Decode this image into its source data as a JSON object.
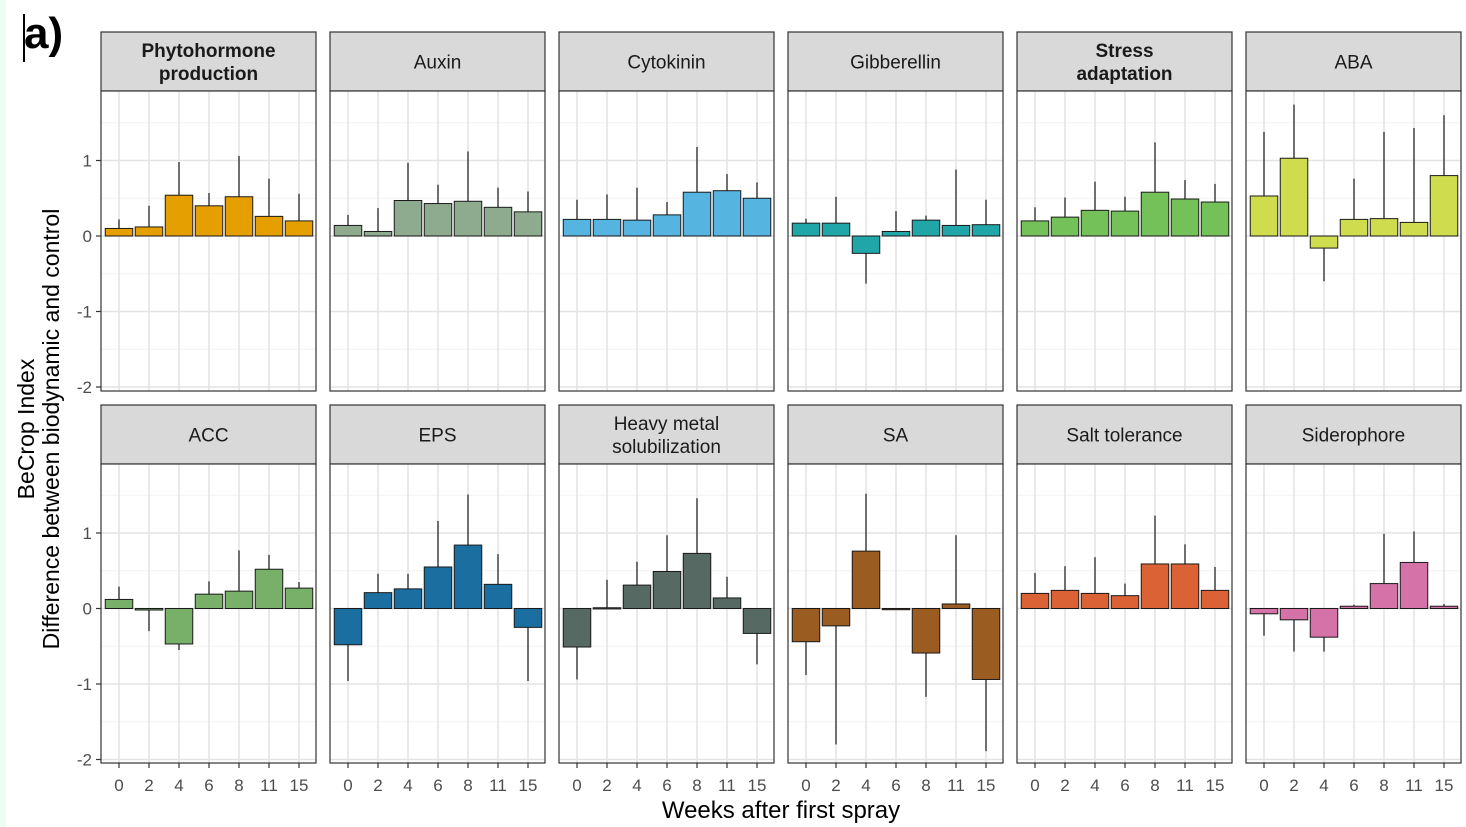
{
  "panel_label": "a)",
  "chart_data": {
    "type": "bar",
    "xlabel": "Weeks after first spray",
    "ylabel_line1": "BeCrop Index",
    "ylabel_line2": "Difference between biodynamic and control",
    "categories": [
      "0",
      "2",
      "4",
      "6",
      "8",
      "11",
      "15"
    ],
    "ylim": [
      -2,
      2
    ],
    "yticks": [
      -2,
      -1,
      0,
      1
    ],
    "ytick_labels": [
      "-2",
      "-1",
      "0",
      "1"
    ],
    "grid": true,
    "legend": "none",
    "panels": [
      {
        "title": "Phytohormone\nproduction",
        "bold": true,
        "color": "#e69f00",
        "values": [
          0.1,
          0.12,
          0.54,
          0.4,
          0.52,
          0.26,
          0.2
        ],
        "error_upper": [
          0.22,
          0.4,
          0.98,
          0.57,
          1.06,
          0.76,
          0.56
        ]
      },
      {
        "title": "Auxin",
        "bold": false,
        "color": "#8fab8f",
        "values": [
          0.14,
          0.06,
          0.47,
          0.43,
          0.46,
          0.38,
          0.32
        ],
        "error_upper": [
          0.28,
          0.37,
          0.97,
          0.68,
          1.12,
          0.64,
          0.59
        ]
      },
      {
        "title": "Cytokinin",
        "bold": false,
        "color": "#56b4e0",
        "values": [
          0.22,
          0.22,
          0.21,
          0.28,
          0.58,
          0.6,
          0.5
        ],
        "error_upper": [
          0.48,
          0.55,
          0.64,
          0.45,
          1.18,
          0.82,
          0.71
        ]
      },
      {
        "title": "Gibberellin",
        "bold": false,
        "color": "#20a6a8",
        "values": [
          0.17,
          0.17,
          -0.23,
          0.06,
          0.21,
          0.14,
          0.15
        ],
        "error_upper": [
          0.23,
          0.52,
          -0.63,
          0.33,
          0.27,
          0.88,
          0.48
        ]
      },
      {
        "title": "Stress\nadaptation",
        "bold": true,
        "color": "#74c15a",
        "values": [
          0.2,
          0.25,
          0.34,
          0.33,
          0.58,
          0.49,
          0.45
        ],
        "error_upper": [
          0.38,
          0.51,
          0.72,
          0.52,
          1.24,
          0.74,
          0.69
        ]
      },
      {
        "title": "ABA",
        "bold": false,
        "color": "#cfdc4e",
        "values": [
          0.53,
          1.03,
          -0.16,
          0.22,
          0.23,
          0.18,
          0.8
        ],
        "error_upper": [
          1.38,
          1.74,
          -0.6,
          0.76,
          1.38,
          1.43,
          1.6
        ]
      },
      {
        "title": "ACC",
        "bold": false,
        "color": "#78b069",
        "values": [
          0.12,
          -0.02,
          -0.47,
          0.19,
          0.23,
          0.52,
          0.27
        ],
        "error_upper": [
          0.29,
          -0.3,
          -0.55,
          0.36,
          0.77,
          0.71,
          0.35
        ]
      },
      {
        "title": "EPS",
        "bold": false,
        "color": "#1a6fa0",
        "values": [
          -0.48,
          0.21,
          0.26,
          0.55,
          0.84,
          0.32,
          -0.25
        ],
        "error_upper": [
          -0.96,
          0.46,
          0.46,
          1.16,
          1.51,
          0.72,
          -0.96
        ]
      },
      {
        "title": "Heavy metal\nsolubilization",
        "bold": false,
        "color": "#566963",
        "values": [
          -0.51,
          0.01,
          0.31,
          0.49,
          0.73,
          0.14,
          -0.33
        ],
        "error_upper": [
          -0.94,
          0.38,
          0.62,
          0.97,
          1.46,
          0.42,
          -0.74
        ]
      },
      {
        "title": "SA",
        "bold": false,
        "color": "#9a5c20",
        "values": [
          -0.44,
          -0.23,
          0.76,
          0.0,
          -0.59,
          0.06,
          -0.94
        ],
        "error_upper": [
          -0.88,
          -1.8,
          1.52,
          0.0,
          -1.17,
          0.97,
          -1.89
        ]
      },
      {
        "title": "Salt tolerance",
        "bold": false,
        "color": "#db6234",
        "values": [
          0.2,
          0.24,
          0.2,
          0.17,
          0.59,
          0.59,
          0.24
        ],
        "error_upper": [
          0.47,
          0.56,
          0.68,
          0.33,
          1.23,
          0.85,
          0.55
        ]
      },
      {
        "title": "Siderophore",
        "bold": false,
        "color": "#d573a8",
        "values": [
          -0.07,
          -0.15,
          -0.38,
          0.03,
          0.33,
          0.61,
          0.03
        ],
        "error_upper": [
          -0.36,
          -0.57,
          -0.57,
          0.05,
          0.99,
          1.02,
          0.06
        ]
      }
    ]
  }
}
